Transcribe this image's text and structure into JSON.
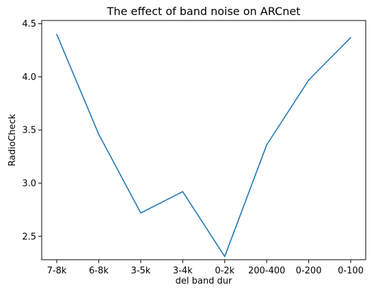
{
  "chart_data": {
    "type": "line",
    "title": "The effect of band noise on ARCnet",
    "xlabel": "del band dur",
    "ylabel": "RadioCheck",
    "categories": [
      "7-8k",
      "6-8k",
      "3-5k",
      "3-4k",
      "0-2k",
      "200-400",
      "0-200",
      "0-100"
    ],
    "series": [
      {
        "values": [
          4.4,
          3.46,
          2.72,
          2.92,
          2.31,
          3.36,
          3.97,
          4.37
        ],
        "color": "#1f77b4"
      }
    ],
    "ylim": [
      2.28,
      4.53
    ],
    "yticks": [
      2.5,
      3.0,
      3.5,
      4.0,
      4.5
    ],
    "ytick_labels": [
      "2.5",
      "3.0",
      "3.5",
      "4.0",
      "4.5"
    ],
    "grid": false,
    "legend": "none"
  }
}
